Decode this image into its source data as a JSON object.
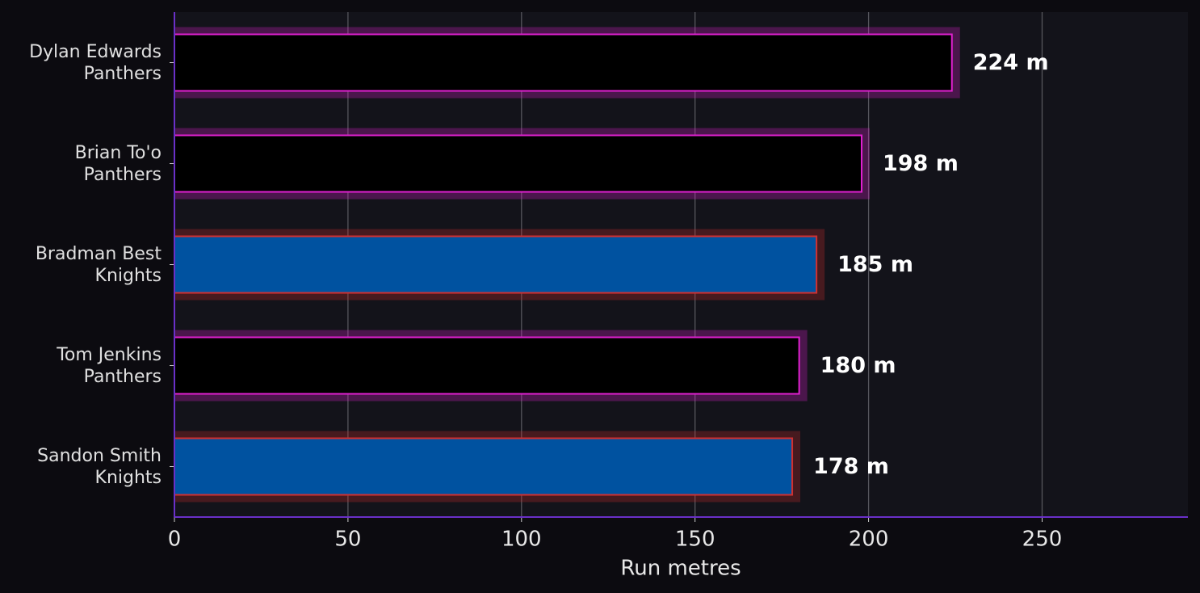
{
  "chart_data": {
    "type": "barh",
    "categories": [
      "Dylan Edwards\nPanthers",
      "Brian To'o\nPanthers",
      "Bradman Best\nKnights",
      "Tom Jenkins\nPanthers",
      "Sandon Smith\nKnights"
    ],
    "values": [
      224,
      198,
      185,
      180,
      178
    ],
    "value_labels": [
      "224 m",
      "198 m",
      "185 m",
      "180 m",
      "178 m"
    ],
    "colors": [
      "#000000",
      "#000000",
      "#0052a0",
      "#000000",
      "#0052a0"
    ],
    "edgecolors": [
      "#e020d0",
      "#e020d0",
      "#d03030",
      "#e020d0",
      "#d03030"
    ],
    "xlabel": "Run metres",
    "xlim": [
      0,
      292
    ],
    "xticks": [
      0,
      50,
      100,
      150,
      200,
      250
    ],
    "grid": true
  }
}
